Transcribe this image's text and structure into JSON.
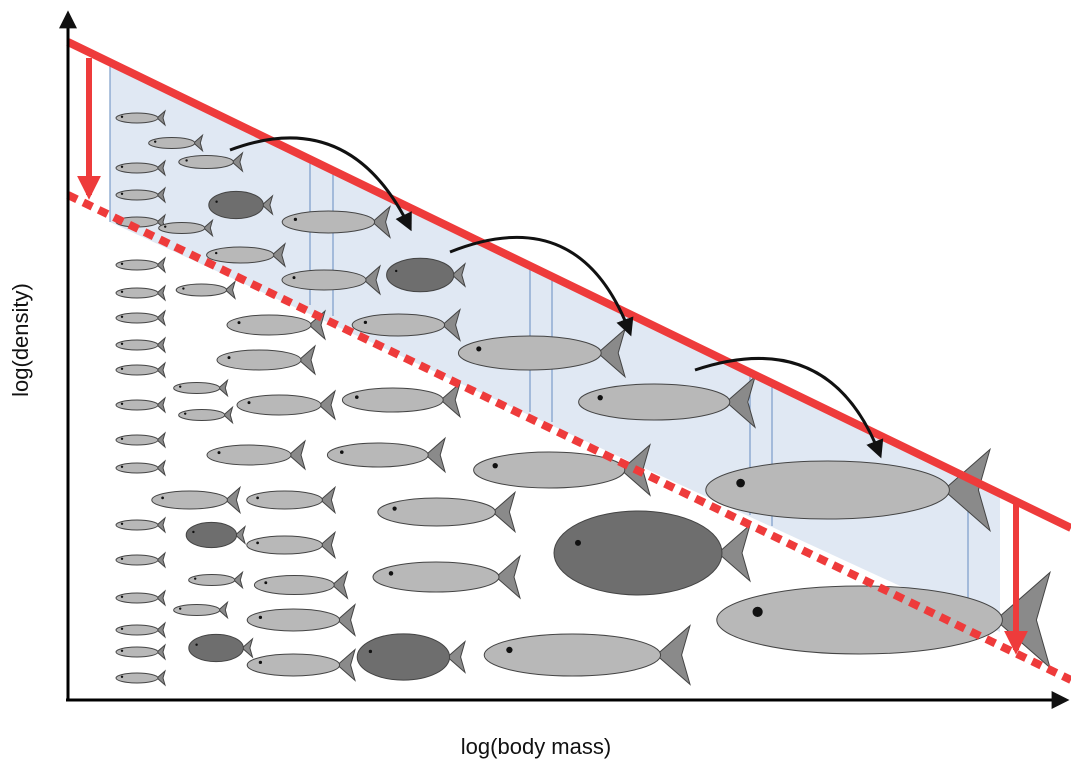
{
  "axes": {
    "x_label": "log(body mass)",
    "y_label": "log(density)"
  }
}
